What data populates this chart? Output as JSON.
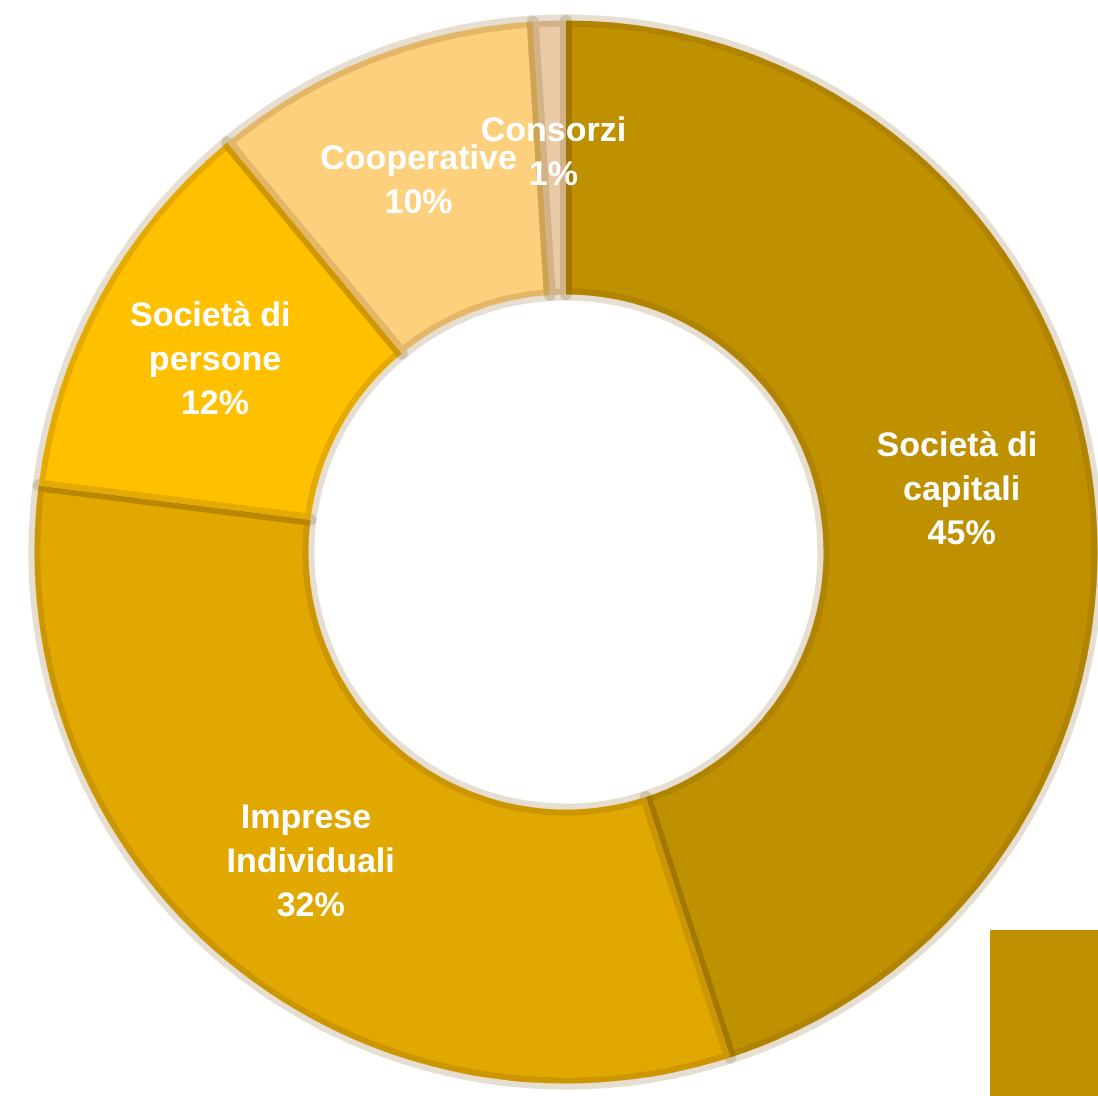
{
  "chart_data": {
    "type": "donut",
    "categories": [
      "Società di capitali",
      "Imprese Individuali",
      "Società di persone",
      "Cooperative",
      "Consorzi"
    ],
    "values": [
      45,
      32,
      12,
      10,
      1
    ],
    "value_labels": [
      "45%",
      "32%",
      "12%",
      "10%",
      "1%"
    ],
    "colors": [
      "#bf9000",
      "#e0a800",
      "#ffc000",
      "#fdd07e",
      "#e8cba6"
    ],
    "legend": false
  }
}
